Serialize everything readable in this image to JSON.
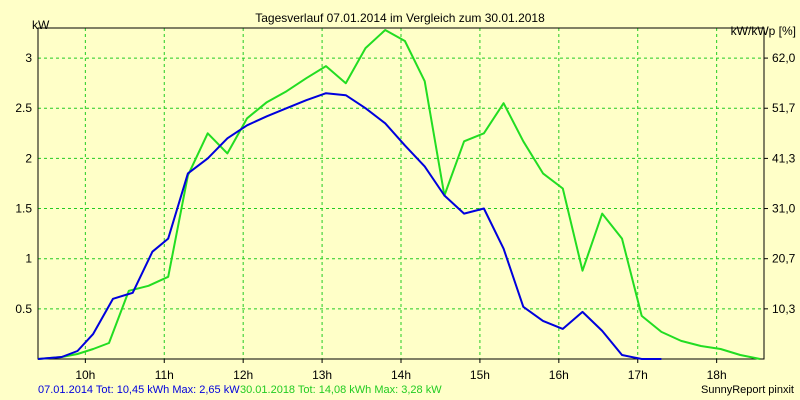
{
  "chart_data": {
    "type": "line",
    "title": "Tagesverlauf 07.01.2014 im Vergleich zum 30.01.2018",
    "ylabel_left": "kW",
    "ylabel_right": "kW/kWp [%]",
    "xlim": [
      9.4,
      18.6
    ],
    "ylim": [
      0,
      3.3
    ],
    "x_ticks": [
      10,
      11,
      12,
      13,
      14,
      15,
      16,
      17,
      18
    ],
    "x_tick_labels": [
      "10h",
      "11h",
      "12h",
      "13h",
      "14h",
      "15h",
      "16h",
      "17h",
      "18h"
    ],
    "y_ticks_left": [
      0.5,
      1,
      1.5,
      2,
      2.5,
      3
    ],
    "y_tick_labels_left": [
      "0.5",
      "1",
      "1.5",
      "2",
      "2.5",
      "3"
    ],
    "y_ticks_right_at": [
      0.5,
      1,
      1.5,
      2,
      2.5,
      3
    ],
    "y_tick_labels_right": [
      "10,3",
      "20,7",
      "31,0",
      "41,3",
      "51,7",
      "62,0"
    ],
    "grid": true,
    "series": [
      {
        "name": "07.01.2014",
        "color": "#0000dd",
        "x": [
          9.4,
          9.7,
          9.9,
          10.1,
          10.35,
          10.6,
          10.85,
          11.05,
          11.3,
          11.55,
          11.8,
          12.05,
          12.3,
          12.55,
          12.8,
          13.05,
          13.3,
          13.55,
          13.8,
          14.05,
          14.3,
          14.55,
          14.8,
          15.05,
          15.3,
          15.55,
          15.8,
          16.05,
          16.3,
          16.55,
          16.8,
          17.05,
          17.3
        ],
        "y": [
          0,
          0.02,
          0.08,
          0.25,
          0.6,
          0.66,
          1.07,
          1.2,
          1.85,
          2.0,
          2.2,
          2.33,
          2.42,
          2.5,
          2.58,
          2.65,
          2.63,
          2.5,
          2.35,
          2.13,
          1.92,
          1.63,
          1.45,
          1.5,
          1.1,
          0.52,
          0.38,
          0.3,
          0.47,
          0.28,
          0.04,
          0.0,
          0.0
        ]
      },
      {
        "name": "30.01.2018",
        "color": "#22dd22",
        "x": [
          9.4,
          9.7,
          9.9,
          10.1,
          10.3,
          10.55,
          10.8,
          11.05,
          11.3,
          11.55,
          11.8,
          12.05,
          12.3,
          12.55,
          12.8,
          13.05,
          13.3,
          13.55,
          13.8,
          14.05,
          14.3,
          14.55,
          14.8,
          15.05,
          15.3,
          15.55,
          15.8,
          16.05,
          16.3,
          16.55,
          16.8,
          17.05,
          17.3,
          17.55,
          17.8,
          18.05,
          18.3,
          18.55
        ],
        "y": [
          0,
          0.02,
          0.05,
          0.1,
          0.16,
          0.68,
          0.73,
          0.82,
          1.83,
          2.25,
          2.05,
          2.4,
          2.56,
          2.67,
          2.8,
          2.92,
          2.75,
          3.1,
          3.28,
          3.17,
          2.77,
          1.63,
          2.17,
          2.25,
          2.55,
          2.17,
          1.85,
          1.7,
          0.88,
          1.45,
          1.2,
          0.43,
          0.27,
          0.18,
          0.13,
          0.1,
          0.04,
          0.0
        ]
      }
    ],
    "footer": {
      "series1_text": "07.01.2014 Tot: 10,45 kWh Max: 2,65 kW",
      "series2_text": "30.01.2018 Tot: 14,08 kWh Max: 3,28 kW",
      "credit": "SunnyReport pinxit"
    }
  },
  "colors": {
    "background": "#ffffc8",
    "grid": "#22cc22",
    "axis": "#000000"
  }
}
